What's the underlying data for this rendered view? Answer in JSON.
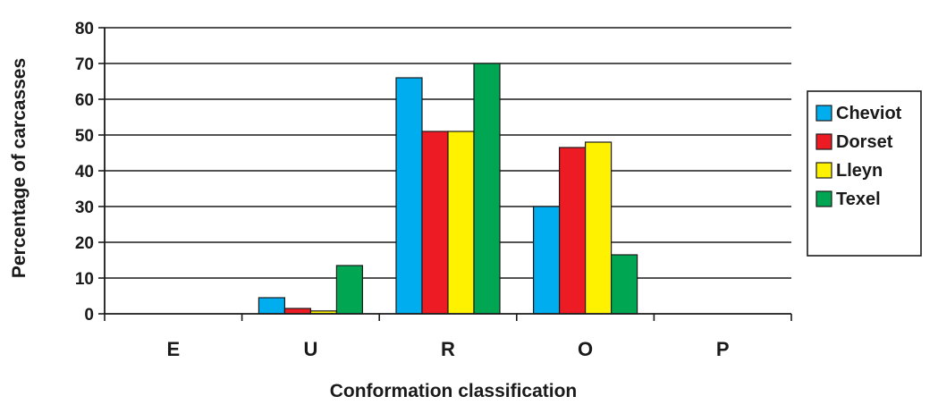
{
  "chart_data": {
    "type": "bar",
    "title": "",
    "xlabel": "Conformation classification",
    "ylabel": "Percentage of carcasses",
    "ylim": [
      0,
      80
    ],
    "yticks": [
      0,
      10,
      20,
      30,
      40,
      50,
      60,
      70,
      80
    ],
    "categories": [
      "E",
      "U",
      "R",
      "O",
      "P"
    ],
    "series": [
      {
        "name": "Cheviot",
        "color": "#00aeef",
        "values": [
          0,
          4.5,
          66,
          30,
          0
        ]
      },
      {
        "name": "Dorset",
        "color": "#ed1c24",
        "values": [
          0,
          1.5,
          51,
          46.5,
          0
        ]
      },
      {
        "name": "Lleyn",
        "color": "#fff200",
        "values": [
          0,
          0.8,
          51,
          48,
          0
        ]
      },
      {
        "name": "Texel",
        "color": "#00a651",
        "values": [
          0,
          13.5,
          70,
          16.5,
          0
        ]
      }
    ],
    "grid": true,
    "legend_position": "right"
  }
}
